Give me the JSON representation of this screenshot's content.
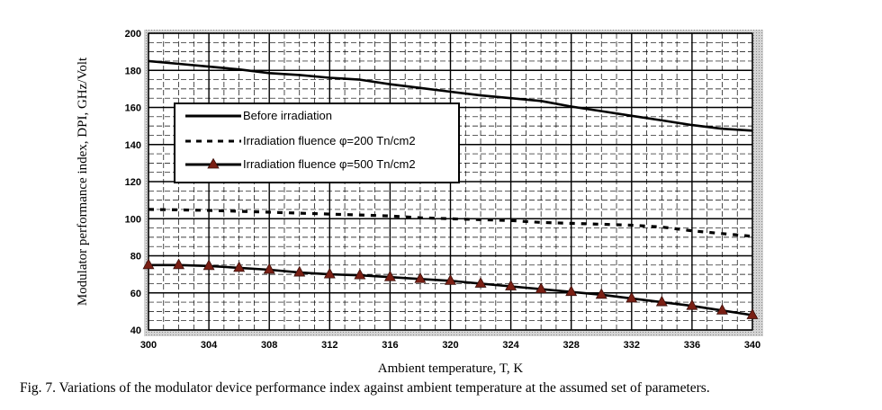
{
  "chart_data": {
    "type": "line",
    "xlabel": "Ambient temperature, T, K",
    "ylabel": "Modulator performance index, DPI, GHz/Volt",
    "xlim": [
      300,
      340
    ],
    "ylim": [
      40,
      200
    ],
    "xticks": [
      300,
      304,
      308,
      312,
      316,
      320,
      324,
      328,
      332,
      336,
      340
    ],
    "yticks": [
      40,
      60,
      80,
      100,
      120,
      140,
      160,
      180,
      200
    ],
    "grid": true,
    "legend_position": "upper-left",
    "x": [
      300,
      302,
      304,
      306,
      308,
      310,
      312,
      314,
      316,
      318,
      320,
      322,
      324,
      326,
      328,
      330,
      332,
      334,
      336,
      338,
      340
    ],
    "series": [
      {
        "name": "Before irradiation",
        "style": "solid",
        "color": "#000000",
        "values": [
          185,
          183.5,
          182,
          180.5,
          178.5,
          177.5,
          176,
          175,
          172.5,
          170.5,
          168.5,
          166.5,
          165,
          163.5,
          160.5,
          158,
          155.5,
          153,
          150.5,
          148.5,
          147.5
        ]
      },
      {
        "name": "Irradiation fluence φ=200 Tn/cm2",
        "style": "dashed",
        "color": "#000000",
        "values": [
          105,
          104.8,
          104.5,
          104,
          103.5,
          103,
          102.5,
          102,
          101.5,
          100.5,
          100,
          99.5,
          99,
          98,
          97.5,
          97,
          96.5,
          95.5,
          93.5,
          92,
          90.5
        ]
      },
      {
        "name": "Irradiation fluence φ=500 Tn/cm2",
        "style": "solid-triangle-markers",
        "color": "#000000",
        "marker_color": "#7a1f14",
        "values": [
          75,
          75,
          74.5,
          73.5,
          72.5,
          71,
          70,
          69.5,
          68.5,
          67.5,
          66.5,
          65,
          63.5,
          62,
          60.5,
          59,
          57,
          55,
          53,
          50.5,
          48
        ]
      }
    ]
  },
  "caption": "Fig. 7. Variations of the modulator device performance index against ambient temperature at the assumed set of parameters."
}
